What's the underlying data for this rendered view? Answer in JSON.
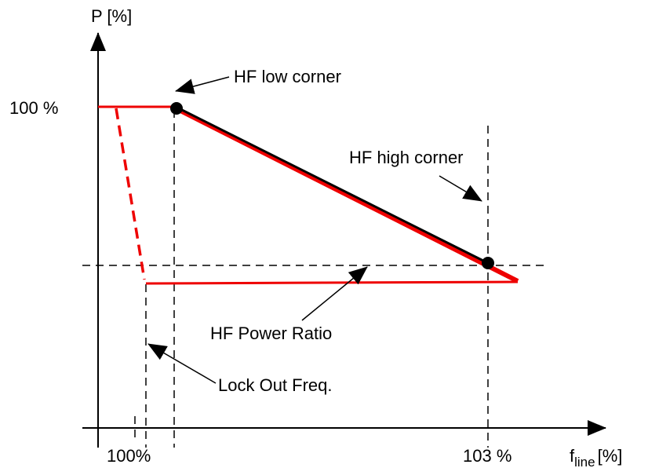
{
  "labels": {
    "y_axis": "P [%]",
    "y_100": "100 %",
    "hf_low_corner": "HF low corner",
    "hf_high_corner": "HF high corner",
    "hf_power_ratio": "HF Power Ratio",
    "lock_out_freq": "Lock Out Freq.",
    "x_100": "100%",
    "x_103": "103 %",
    "x_axis": {
      "symbol": "f",
      "subscript": "line",
      "unit": "[%]"
    }
  }
}
